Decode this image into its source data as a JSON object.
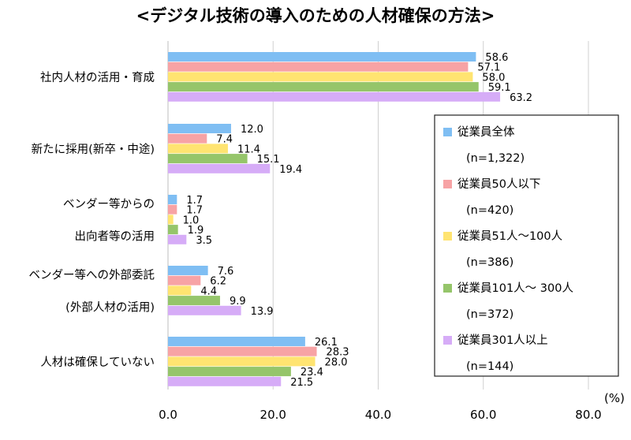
{
  "chart_data": {
    "type": "bar",
    "orientation": "horizontal",
    "title": "<デジタル技術の導入のための人材確保の方法>",
    "unit": "(%)",
    "xlim": [
      0,
      80
    ],
    "xticks": [
      "0.0",
      "20.0",
      "40.0",
      "60.0",
      "80.0"
    ],
    "grid": true,
    "legend_position": "right",
    "categories": [
      {
        "lines": [
          "社内人材の活用・育成"
        ]
      },
      {
        "lines": [
          "新たに採用(新卒・中途)"
        ]
      },
      {
        "lines": [
          "ベンダー等からの",
          "出向者等の活用"
        ]
      },
      {
        "lines": [
          "ベンダー等への外部委託",
          "(外部人材の活用)"
        ]
      },
      {
        "lines": [
          "人材は確保していない"
        ]
      }
    ],
    "series": [
      {
        "name": "従業員全体",
        "n": "(n=1,322)",
        "color": "#7fbef3",
        "values": [
          58.6,
          12.0,
          1.7,
          7.6,
          26.1
        ]
      },
      {
        "name": "従業員50人以下",
        "n": "(n=420)",
        "color": "#f7a3a5",
        "values": [
          57.1,
          7.4,
          1.7,
          6.2,
          28.3
        ]
      },
      {
        "name": "従業員51人～100人",
        "n": "(n=386)",
        "color": "#ffe471",
        "values": [
          58.0,
          11.4,
          1.0,
          4.4,
          28.0
        ]
      },
      {
        "name": "従業員101人～ 300人",
        "n": "(n=372)",
        "color": "#95c56a",
        "values": [
          59.1,
          15.1,
          1.9,
          9.9,
          23.4
        ]
      },
      {
        "name": "従業員301人以上",
        "n": "(n=144)",
        "color": "#d6acf7",
        "values": [
          63.2,
          19.4,
          3.5,
          13.9,
          21.5
        ]
      }
    ]
  }
}
